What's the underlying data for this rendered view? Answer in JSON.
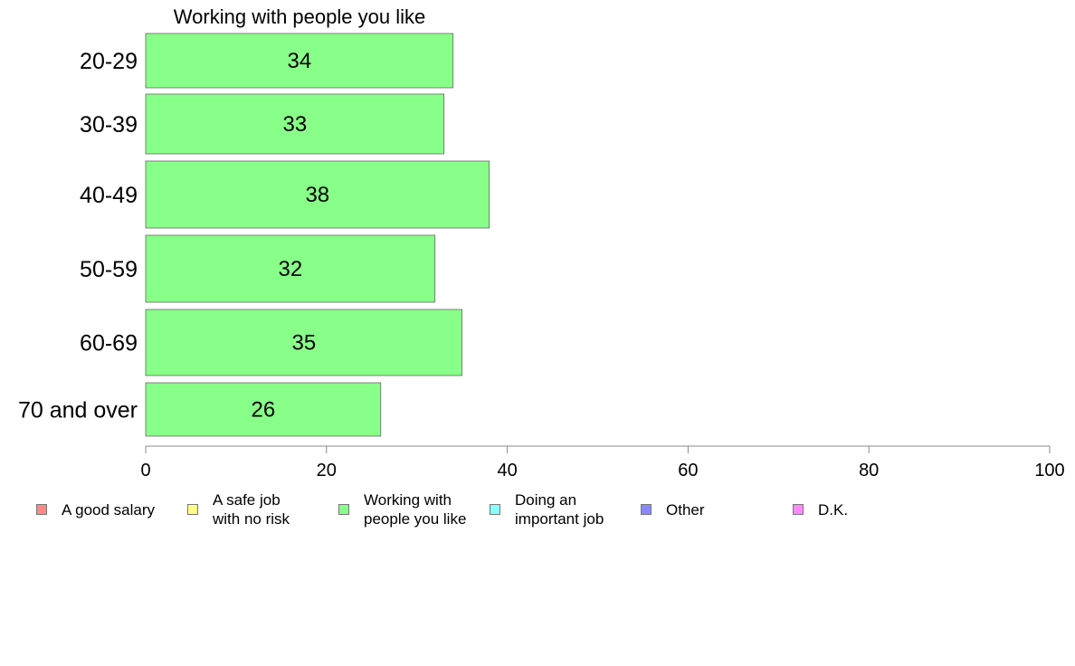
{
  "chart_data": {
    "type": "bar",
    "orientation": "horizontal",
    "title": "Working with people you like",
    "categories": [
      "20-29",
      "30-39",
      "40-49",
      "50-59",
      "60-69",
      "70 and over"
    ],
    "values": [
      34,
      33,
      38,
      32,
      35,
      26
    ],
    "xlim": [
      0,
      100
    ],
    "xticks": [
      0,
      20,
      40,
      60,
      80,
      100
    ],
    "grid": false,
    "legend_placement": "bottom",
    "bar_color": "#88ff88",
    "legend": [
      {
        "label": "A good salary",
        "color": "#ff8888"
      },
      {
        "label": "A safe job\nwith no risk",
        "color": "#ffff88"
      },
      {
        "label": "Working with\npeople you like",
        "color": "#88ff88"
      },
      {
        "label": "Doing an\nimportant job",
        "color": "#88ffff"
      },
      {
        "label": "Other",
        "color": "#8888ff"
      },
      {
        "label": "D.K.",
        "color": "#ff88ff"
      }
    ]
  }
}
